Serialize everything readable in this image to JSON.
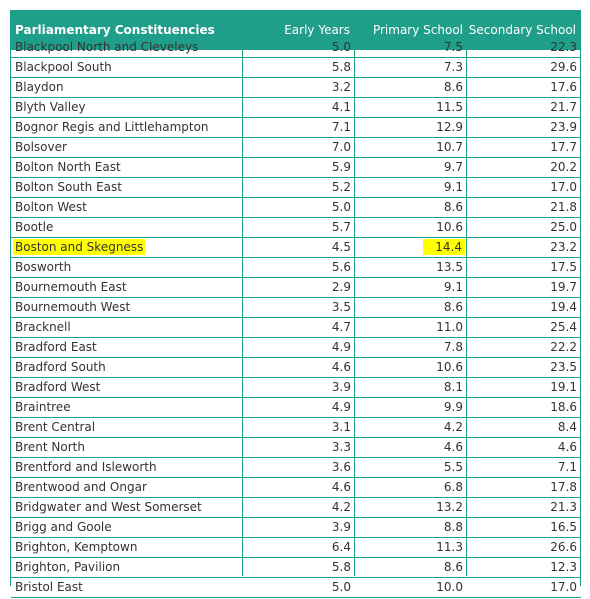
{
  "table": {
    "headers": {
      "name": "Parliamentary Constituencies",
      "early_years": "Early Years",
      "primary_school": "Primary School",
      "secondary_school": "Secondary School"
    },
    "rows": [
      {
        "name": "Blackpool North and Cleveleys",
        "early_years": "5.0",
        "primary_school": "7.5",
        "secondary_school": "22.3"
      },
      {
        "name": "Blackpool South",
        "early_years": "5.8",
        "primary_school": "7.3",
        "secondary_school": "29.6"
      },
      {
        "name": "Blaydon",
        "early_years": "3.2",
        "primary_school": "8.6",
        "secondary_school": "17.6"
      },
      {
        "name": "Blyth Valley",
        "early_years": "4.1",
        "primary_school": "11.5",
        "secondary_school": "21.7"
      },
      {
        "name": "Bognor Regis and Littlehampton",
        "early_years": "7.1",
        "primary_school": "12.9",
        "secondary_school": "23.9"
      },
      {
        "name": "Bolsover",
        "early_years": "7.0",
        "primary_school": "10.7",
        "secondary_school": "17.7"
      },
      {
        "name": "Bolton North East",
        "early_years": "5.9",
        "primary_school": "9.7",
        "secondary_school": "20.2"
      },
      {
        "name": "Bolton South East",
        "early_years": "5.2",
        "primary_school": "9.1",
        "secondary_school": "17.0"
      },
      {
        "name": "Bolton West",
        "early_years": "5.0",
        "primary_school": "8.6",
        "secondary_school": "21.8"
      },
      {
        "name": "Bootle",
        "early_years": "5.7",
        "primary_school": "10.6",
        "secondary_school": "25.0"
      },
      {
        "name": "Boston and Skegness",
        "early_years": "4.5",
        "primary_school": "14.4",
        "secondary_school": "23.2"
      },
      {
        "name": "Bosworth",
        "early_years": "5.6",
        "primary_school": "13.5",
        "secondary_school": "17.5"
      },
      {
        "name": "Bournemouth East",
        "early_years": "2.9",
        "primary_school": "9.1",
        "secondary_school": "19.7"
      },
      {
        "name": "Bournemouth West",
        "early_years": "3.5",
        "primary_school": "8.6",
        "secondary_school": "19.4"
      },
      {
        "name": "Bracknell",
        "early_years": "4.7",
        "primary_school": "11.0",
        "secondary_school": "25.4"
      },
      {
        "name": "Bradford East",
        "early_years": "4.9",
        "primary_school": "7.8",
        "secondary_school": "22.2"
      },
      {
        "name": "Bradford South",
        "early_years": "4.6",
        "primary_school": "10.6",
        "secondary_school": "23.5"
      },
      {
        "name": "Bradford West",
        "early_years": "3.9",
        "primary_school": "8.1",
        "secondary_school": "19.1"
      },
      {
        "name": "Braintree",
        "early_years": "4.9",
        "primary_school": "9.9",
        "secondary_school": "18.6"
      },
      {
        "name": "Brent Central",
        "early_years": "3.1",
        "primary_school": "4.2",
        "secondary_school": "8.4"
      },
      {
        "name": "Brent North",
        "early_years": "3.3",
        "primary_school": "4.6",
        "secondary_school": "4.6"
      },
      {
        "name": "Brentford and Isleworth",
        "early_years": "3.6",
        "primary_school": "5.5",
        "secondary_school": "7.1"
      },
      {
        "name": "Brentwood and Ongar",
        "early_years": "4.6",
        "primary_school": "6.8",
        "secondary_school": "17.8"
      },
      {
        "name": "Bridgwater and West Somerset",
        "early_years": "4.2",
        "primary_school": "13.2",
        "secondary_school": "21.3"
      },
      {
        "name": "Brigg and Goole",
        "early_years": "3.9",
        "primary_school": "8.8",
        "secondary_school": "16.5"
      },
      {
        "name": "Brighton, Kemptown",
        "early_years": "6.4",
        "primary_school": "11.3",
        "secondary_school": "26.6"
      },
      {
        "name": "Brighton, Pavilion",
        "early_years": "5.8",
        "primary_school": "8.6",
        "secondary_school": "12.3"
      },
      {
        "name": "Bristol East",
        "early_years": "5.0",
        "primary_school": "10.0",
        "secondary_school": "17.0"
      }
    ],
    "highlight": {
      "row_name": "Boston and Skegness",
      "color": "#ffff00"
    },
    "colors": {
      "header_bg": "#1f9e89",
      "header_text": "#ffffff",
      "grid": "#1f9e89",
      "text": "#333333"
    }
  }
}
